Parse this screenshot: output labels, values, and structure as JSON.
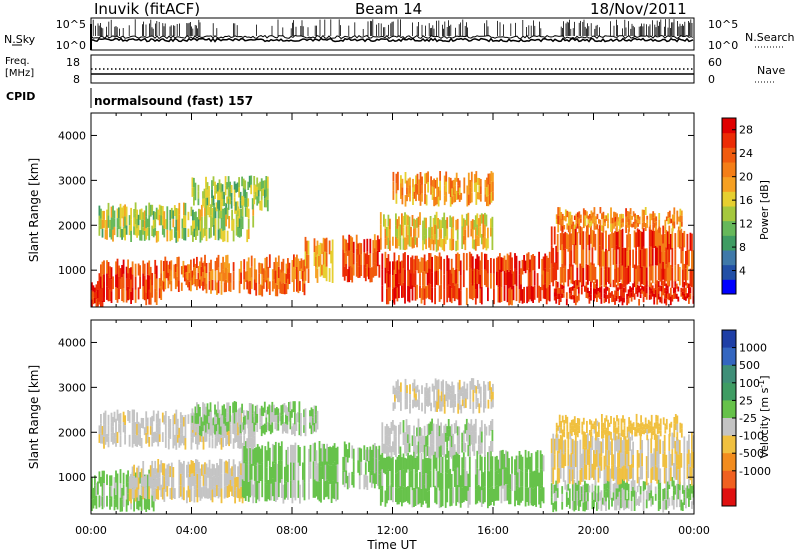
{
  "header": {
    "site_title": "Inuvik (fitACF)",
    "beam": "Beam 14",
    "date": "18/Nov/2011"
  },
  "params": {
    "nsky_label": "N.Sky",
    "nsky_ticks": [
      "10^5",
      "10^0"
    ],
    "nsearch_label": "N.Search",
    "nsearch_ticks": [
      "10^5",
      "10^0"
    ],
    "freq_label": "Freq.",
    "freq_unit": "[MHz]",
    "freq_ticks": [
      "18",
      "8"
    ],
    "nave_label": "Nave",
    "nave_ticks": [
      "60",
      "0"
    ],
    "cpid_label": "CPID",
    "cpid_value": "normalsound (fast) 157"
  },
  "colors": {
    "power": [
      "#0000ff",
      "#224fa6",
      "#3f79a9",
      "#3f9c63",
      "#66b85a",
      "#a5c83e",
      "#e6cf30",
      "#f6a022",
      "#f47e17",
      "#f15b0e",
      "#ec2c05",
      "#e00000"
    ],
    "velocity": [
      "#1f3fa6",
      "#3466c0",
      "#3f8f78",
      "#3f9c63",
      "#66c24a",
      "#c4c4c4",
      "#f0c040",
      "#f28c1e",
      "#f06020",
      "#e01010"
    ]
  },
  "chart_data": [
    {
      "type": "heatmap",
      "name": "power",
      "title": "",
      "xlabel": "",
      "ylabel": "Slant Range [km]",
      "xlim": [
        "00:00",
        "00:00"
      ],
      "ylim": [
        180,
        4500
      ],
      "xticks": [
        "00:00",
        "04:00",
        "08:00",
        "12:00",
        "16:00",
        "20:00",
        "00:00"
      ],
      "yticks": [
        1000,
        2000,
        3000,
        4000
      ],
      "colorbar": {
        "label": "Power [dB]",
        "range": [
          0,
          30
        ],
        "ticks": [
          4,
          8,
          12,
          16,
          20,
          24,
          28
        ]
      },
      "regions": [
        {
          "t0": 0.0,
          "t1": 0.5,
          "r0": 200,
          "r1": 700,
          "value": 27
        },
        {
          "t0": 0.3,
          "t1": 2.8,
          "r0": 300,
          "r1": 1150,
          "value": 25
        },
        {
          "t0": 2.8,
          "t1": 4.5,
          "r0": 600,
          "r1": 1200,
          "value": 23
        },
        {
          "t0": 4.5,
          "t1": 8.5,
          "r0": 500,
          "r1": 1250,
          "value": 22
        },
        {
          "t0": 8.5,
          "t1": 9.7,
          "r0": 800,
          "r1": 1650,
          "value": 20
        },
        {
          "t0": 0.3,
          "t1": 6.5,
          "r0": 1700,
          "r1": 2400,
          "value": 14
        },
        {
          "t0": 4.0,
          "t1": 7.0,
          "r0": 2400,
          "r1": 3000,
          "value": 13
        },
        {
          "t0": 10.0,
          "t1": 11.5,
          "r0": 800,
          "r1": 1700,
          "value": 24
        },
        {
          "t0": 11.5,
          "t1": 18.3,
          "r0": 300,
          "r1": 1300,
          "value": 26
        },
        {
          "t0": 11.5,
          "t1": 16.0,
          "r0": 1500,
          "r1": 2200,
          "value": 17
        },
        {
          "t0": 12.0,
          "t1": 16.0,
          "r0": 2500,
          "r1": 3100,
          "value": 20
        },
        {
          "t0": 18.3,
          "t1": 24.0,
          "r0": 300,
          "r1": 700,
          "value": 27
        },
        {
          "t0": 18.3,
          "t1": 24.0,
          "r0": 700,
          "r1": 1900,
          "value": 24
        },
        {
          "t0": 18.5,
          "t1": 23.5,
          "r0": 1900,
          "r1": 2300,
          "value": 21
        }
      ]
    },
    {
      "type": "heatmap",
      "name": "velocity",
      "title": "",
      "xlabel": "Time UT",
      "ylabel": "Slant Range [km]",
      "xlim": [
        "00:00",
        "00:00"
      ],
      "ylim": [
        180,
        4500
      ],
      "xticks": [
        "00:00",
        "04:00",
        "08:00",
        "12:00",
        "16:00",
        "20:00",
        "00:00"
      ],
      "yticks": [
        1000,
        2000,
        3000,
        4000
      ],
      "colorbar": {
        "label": "Velocity [m s^-1]",
        "range": [
          -1200,
          1200
        ],
        "ticks": [
          "1000",
          "500",
          "100",
          "25",
          "-25",
          "-100",
          "-500",
          "-1000"
        ]
      },
      "regions": [
        {
          "t0": 0.0,
          "t1": 2.5,
          "r0": 300,
          "r1": 1100,
          "value": 80
        },
        {
          "t0": 1.5,
          "t1": 6.0,
          "r0": 500,
          "r1": 1300,
          "value": -200
        },
        {
          "t0": 6.0,
          "t1": 9.8,
          "r0": 500,
          "r1": 1700,
          "value": 60
        },
        {
          "t0": 0.3,
          "t1": 6.5,
          "r0": 1700,
          "r1": 2400,
          "value": -150
        },
        {
          "t0": 4.0,
          "t1": 9.0,
          "r0": 2000,
          "r1": 2600,
          "value": 0
        },
        {
          "t0": 10.0,
          "t1": 11.5,
          "r0": 800,
          "r1": 1700,
          "value": 60
        },
        {
          "t0": 11.5,
          "t1": 18.0,
          "r0": 400,
          "r1": 1500,
          "value": 90
        },
        {
          "t0": 11.5,
          "t1": 16.0,
          "r0": 1500,
          "r1": 2200,
          "value": -80
        },
        {
          "t0": 12.0,
          "t1": 16.0,
          "r0": 2500,
          "r1": 3100,
          "value": -150
        },
        {
          "t0": 18.3,
          "t1": 24.0,
          "r0": 300,
          "r1": 900,
          "value": 0
        },
        {
          "t0": 18.3,
          "t1": 24.0,
          "r0": 900,
          "r1": 1900,
          "value": -250
        },
        {
          "t0": 18.5,
          "t1": 23.5,
          "r0": 1900,
          "r1": 2300,
          "value": -350
        }
      ]
    }
  ]
}
